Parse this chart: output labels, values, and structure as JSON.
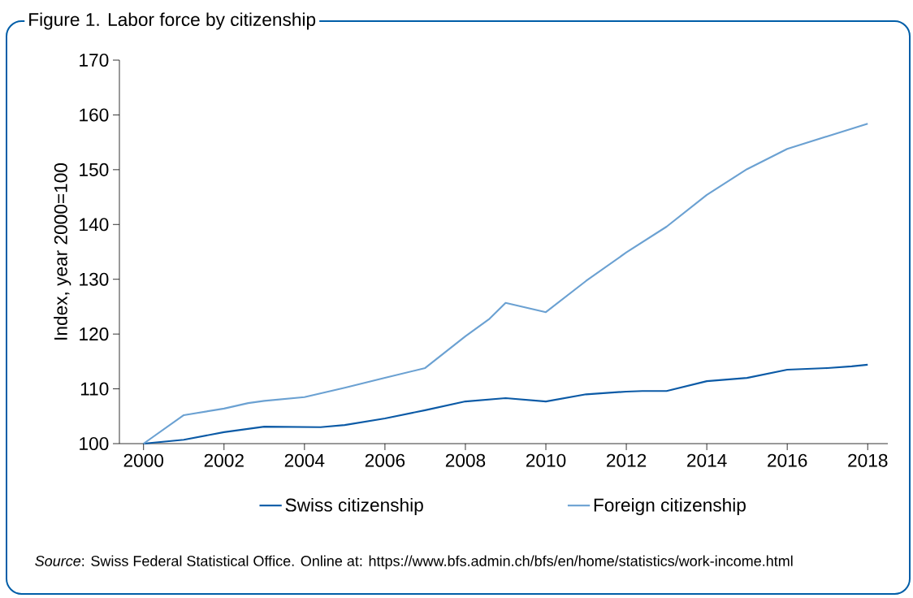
{
  "chart_data": {
    "type": "line",
    "title": "Figure 1. Labor force by citizenship",
    "ylabel": "Index, year 2000=100",
    "xlim": [
      1999.4,
      2018.5
    ],
    "ylim": [
      100,
      170
    ],
    "xticks": [
      2000,
      2002,
      2004,
      2006,
      2008,
      2010,
      2012,
      2014,
      2016,
      2018
    ],
    "yticks": [
      100,
      110,
      120,
      130,
      140,
      150,
      160,
      170
    ],
    "series": [
      {
        "name": "Swiss citizenship",
        "color": "#0b5aa6",
        "x": [
          2000,
          2001,
          2002,
          2003,
          2004.4,
          2005,
          2006,
          2007,
          2008,
          2009,
          2010,
          2011,
          2012,
          2012.4,
          2013,
          2014,
          2015,
          2016,
          2017,
          2017.6,
          2018
        ],
        "values": [
          100,
          100.7,
          102.1,
          103.1,
          103,
          103.4,
          104.6,
          106.1,
          107.7,
          108.3,
          107.7,
          109,
          109.5,
          109.6,
          109.6,
          111.4,
          112,
          113.5,
          113.8,
          114.1,
          114.4
        ]
      },
      {
        "name": "Foreign citizenship",
        "color": "#6ba1d2",
        "x": [
          2000,
          2001,
          2002,
          2002.6,
          2003,
          2004,
          2005,
          2006,
          2007,
          2008,
          2008.6,
          2009,
          2010,
          2011,
          2012,
          2013,
          2014,
          2015,
          2016,
          2017,
          2018
        ],
        "values": [
          100,
          105.2,
          106.4,
          107.4,
          107.8,
          108.5,
          110.2,
          112,
          113.8,
          119.6,
          122.8,
          125.7,
          124,
          129.7,
          134.9,
          139.6,
          145.4,
          150.1,
          153.8,
          156.1,
          158.4
        ]
      }
    ],
    "grid": false,
    "legend": "bottom",
    "line_style": "solid",
    "marker": "none",
    "annotations": [
      "*Source*: Swiss Federal Statistical Office. Online at: https://www.bfs.admin.ch/bfs/en/home/statistics/work-income.html"
    ]
  }
}
